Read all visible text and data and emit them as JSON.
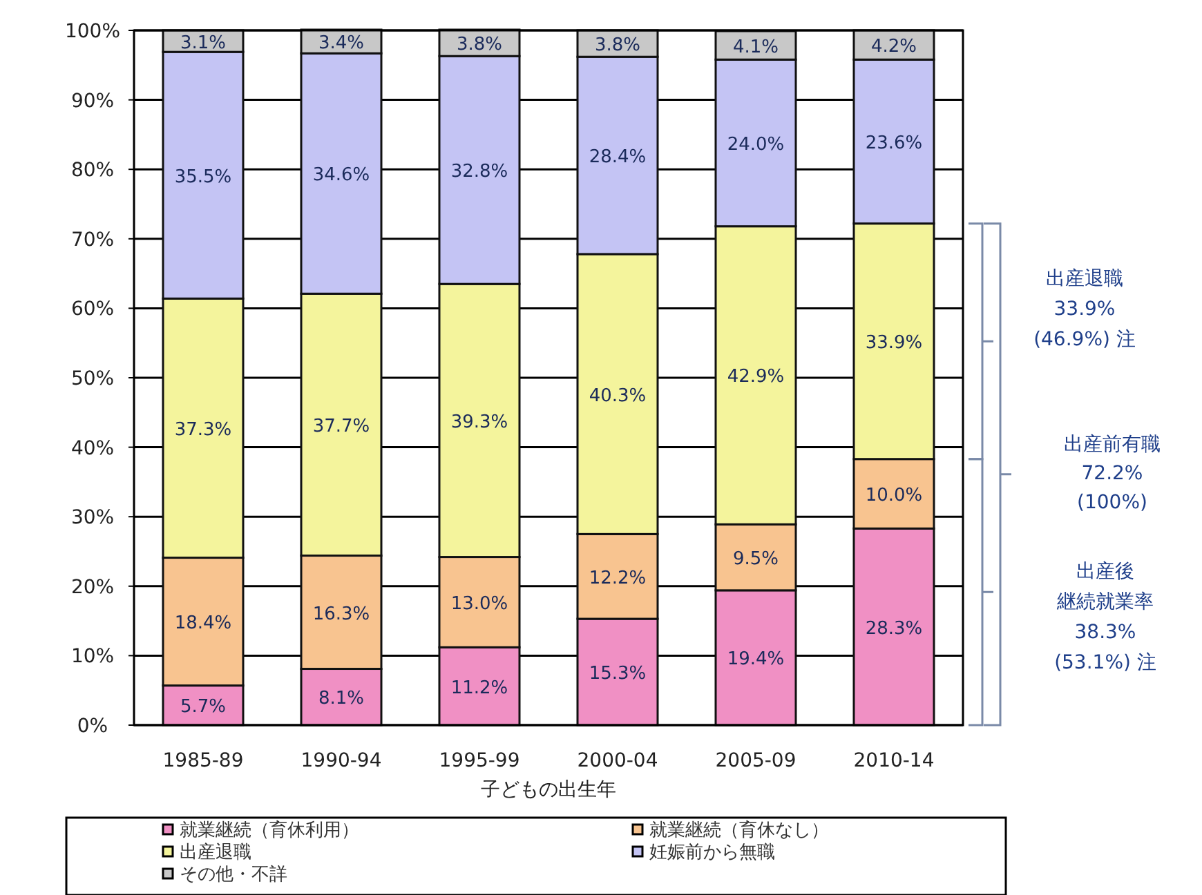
{
  "chart_data": {
    "type": "bar",
    "stacked": true,
    "xlabel": "子どもの出生年",
    "categories": [
      "1985-89",
      "1990-94",
      "1995-99",
      "2000-04",
      "2005-09",
      "2010-14"
    ],
    "series": [
      {
        "name": "就業継続（育休利用）",
        "color": "#f090c4",
        "values": [
          5.7,
          8.1,
          11.2,
          15.3,
          19.4,
          28.3
        ],
        "value_labels": [
          "5.7%",
          "8.1%",
          "11.2%",
          "15.3%",
          "19.4%",
          "28.3%"
        ]
      },
      {
        "name": "就業継続（育休なし）",
        "color": "#f8c490",
        "values": [
          18.4,
          16.3,
          13.0,
          12.2,
          9.5,
          10.0
        ],
        "value_labels": [
          "18.4%",
          "16.3%",
          "13.0%",
          "12.2%",
          "9.5%",
          "10.0%"
        ]
      },
      {
        "name": "出産退職",
        "color": "#f4f49c",
        "values": [
          37.3,
          37.7,
          39.3,
          40.3,
          42.9,
          33.9
        ],
        "value_labels": [
          "37.3%",
          "37.7%",
          "39.3%",
          "40.3%",
          "42.9%",
          "33.9%"
        ]
      },
      {
        "name": "妊娠前から無職",
        "color": "#c4c4f4",
        "values": [
          35.5,
          34.6,
          32.8,
          28.4,
          24.0,
          23.6
        ],
        "value_labels": [
          "35.5%",
          "34.6%",
          "32.8%",
          "28.4%",
          "24.0%",
          "23.6%"
        ]
      },
      {
        "name": "その他・不詳",
        "color": "#c8c8c8",
        "values": [
          3.1,
          3.4,
          3.8,
          3.8,
          4.1,
          4.2
        ],
        "value_labels": [
          "3.1%",
          "3.4%",
          "3.8%",
          "3.8%",
          "4.1%",
          "4.2%"
        ]
      }
    ],
    "ylim": [
      0,
      100
    ],
    "yticks": [
      {
        "value": 0,
        "label": "0%"
      },
      {
        "value": 10,
        "label": "10%"
      },
      {
        "value": 20,
        "label": "20%"
      },
      {
        "value": 30,
        "label": "30%"
      },
      {
        "value": 40,
        "label": "40%"
      },
      {
        "value": 50,
        "label": "50%"
      },
      {
        "value": 60,
        "label": "60%"
      },
      {
        "value": 70,
        "label": "70%"
      },
      {
        "value": 80,
        "label": "80%"
      },
      {
        "value": 90,
        "label": "90%"
      },
      {
        "value": 100,
        "label": "100%"
      }
    ],
    "grid": "y",
    "legend": "bottom",
    "annotations": [
      "出産退職",
      "33.9%",
      "(46.9%) 注",
      "出産前有職",
      "72.2%",
      "(100%)",
      "出産後",
      "継続就業率",
      "38.3%",
      "(53.1%) 注"
    ]
  }
}
